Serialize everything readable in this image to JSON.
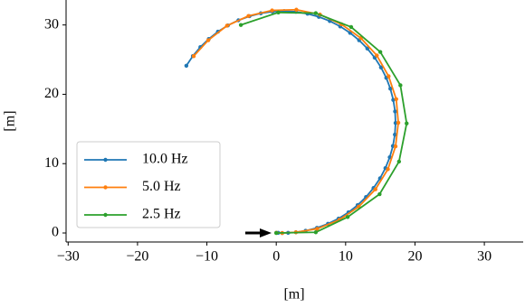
{
  "chart_data": {
    "type": "line",
    "xlabel": "[m]",
    "ylabel": "[m]",
    "xlim": [
      -30.3,
      35.6
    ],
    "ylim": [
      -1.3,
      33.6
    ],
    "xticks": [
      {
        "value": -30,
        "label": "−30"
      },
      {
        "value": -20,
        "label": "−20"
      },
      {
        "value": -10,
        "label": "−10"
      },
      0,
      10,
      20,
      30
    ],
    "yticks": [
      0,
      10,
      20,
      30
    ],
    "grid": false,
    "legend": "center left",
    "series": [
      {
        "name": "10.0 Hz",
        "color": "#1f77b4",
        "x": [
          0.01,
          0.29,
          0.86,
          1.71,
          2.83,
          4.23,
          5.87,
          7.46,
          8.98,
          10.41,
          11.73,
          12.94,
          14.02,
          14.96,
          15.74,
          16.36,
          16.82,
          17.1,
          17.2,
          17.13,
          16.87,
          16.45,
          15.86,
          15.1,
          14.19,
          13.13,
          11.94,
          10.64,
          9.22,
          7.72,
          6.14,
          4.51,
          2.83,
          1.14,
          -0.55,
          -2.23,
          -3.87,
          -5.46,
          -6.98,
          -8.41,
          -9.73,
          -10.94,
          -12.02,
          -12.96
        ],
        "values": [
          0.03,
          0.02,
          0.0,
          0.02,
          0.1,
          0.32,
          0.74,
          1.33,
          2.07,
          2.97,
          4.02,
          5.19,
          6.48,
          7.88,
          9.36,
          10.92,
          12.54,
          14.19,
          15.86,
          17.53,
          19.19,
          20.81,
          22.38,
          23.88,
          25.29,
          26.6,
          27.8,
          28.86,
          29.79,
          30.56,
          31.17,
          31.62,
          31.9,
          32.0,
          31.93,
          31.68,
          31.26,
          30.67,
          29.93,
          29.03,
          27.98,
          26.81,
          25.52,
          24.12
        ]
      },
      {
        "name": "5.0 Hz",
        "color": "#ff7f0e",
        "x": [
          0.01,
          0.86,
          2.83,
          5.9,
          9.1,
          11.9,
          14.3,
          16.1,
          17.2,
          17.6,
          17.3,
          16.2,
          14.5,
          12.2,
          9.4,
          6.3,
          2.9,
          -0.6,
          -4.0,
          -7.1,
          -9.8,
          -11.9
        ],
        "values": [
          0.03,
          0.0,
          0.1,
          0.6,
          1.9,
          3.8,
          6.3,
          9.2,
          12.5,
          15.9,
          19.3,
          22.6,
          25.6,
          28.1,
          30.1,
          31.5,
          32.2,
          32.1,
          31.3,
          29.9,
          27.8,
          25.5
        ]
      },
      {
        "name": "2.5 Hz",
        "color": "#2ca02c",
        "x": [
          0.0,
          5.7,
          10.3,
          14.9,
          17.7,
          18.8,
          17.9,
          15.0,
          10.8,
          5.7,
          0.3,
          -5.1
        ],
        "values": [
          0.0,
          0.1,
          2.3,
          5.6,
          10.3,
          15.8,
          21.3,
          26.1,
          29.7,
          31.7,
          31.8,
          30.0
        ]
      }
    ]
  }
}
